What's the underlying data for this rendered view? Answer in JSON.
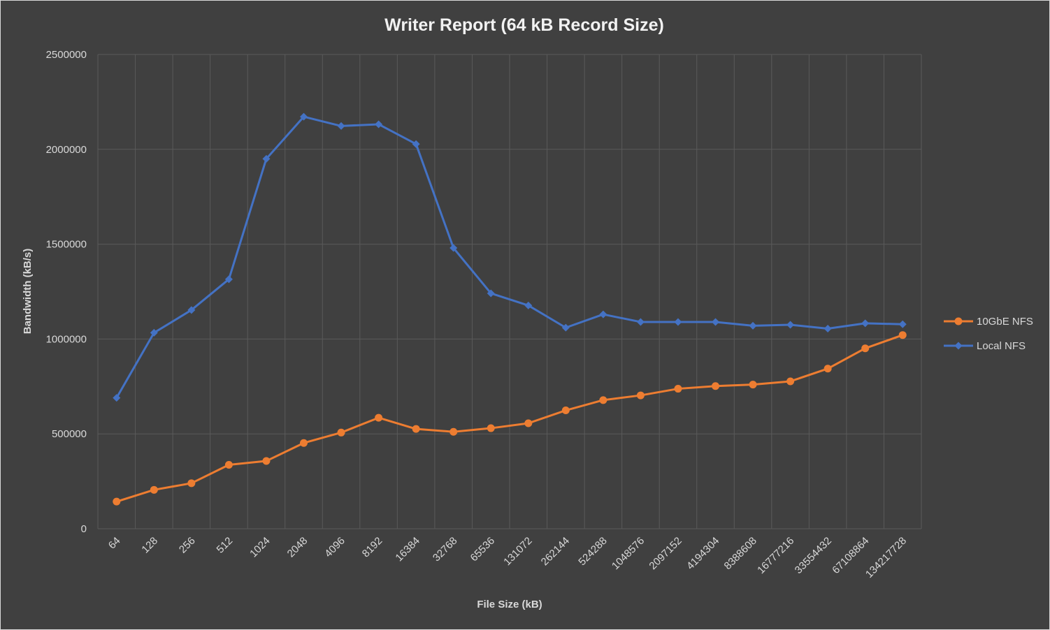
{
  "chart_data": {
    "type": "line",
    "title": "Writer Report (64 kB Record Size)",
    "xlabel": "File Size (kB)",
    "ylabel": "Bandwidth (kB/s)",
    "categories": [
      "64",
      "128",
      "256",
      "512",
      "1024",
      "2048",
      "4096",
      "8192",
      "16384",
      "32768",
      "65536",
      "131072",
      "262144",
      "524288",
      "1048576",
      "2097152",
      "4194304",
      "8388608",
      "16777216",
      "33554432",
      "67108864",
      "134217728"
    ],
    "ylim": [
      0,
      2500000
    ],
    "yticks": [
      "0",
      "500000",
      "1000000",
      "1500000",
      "2000000",
      "2500000"
    ],
    "grid": true,
    "legend_position": "right",
    "series": [
      {
        "name": "10GbE NFS",
        "color": "#ed7d31",
        "marker": "circle",
        "values": [
          143000,
          205000,
          240000,
          337000,
          357000,
          452000,
          507000,
          585000,
          526000,
          511000,
          530000,
          556000,
          624000,
          678000,
          703000,
          738000,
          752000,
          760000,
          777000,
          844000,
          951000,
          1021000
        ]
      },
      {
        "name": "Local NFS",
        "color": "#4472c4",
        "marker": "diamond",
        "values": [
          690000,
          1033000,
          1153000,
          1315000,
          1950000,
          2172000,
          2123000,
          2132000,
          2028000,
          1480000,
          1241000,
          1177000,
          1060000,
          1130000,
          1090000,
          1090000,
          1090000,
          1070000,
          1075000,
          1055000,
          1083000,
          1078000
        ]
      }
    ]
  }
}
